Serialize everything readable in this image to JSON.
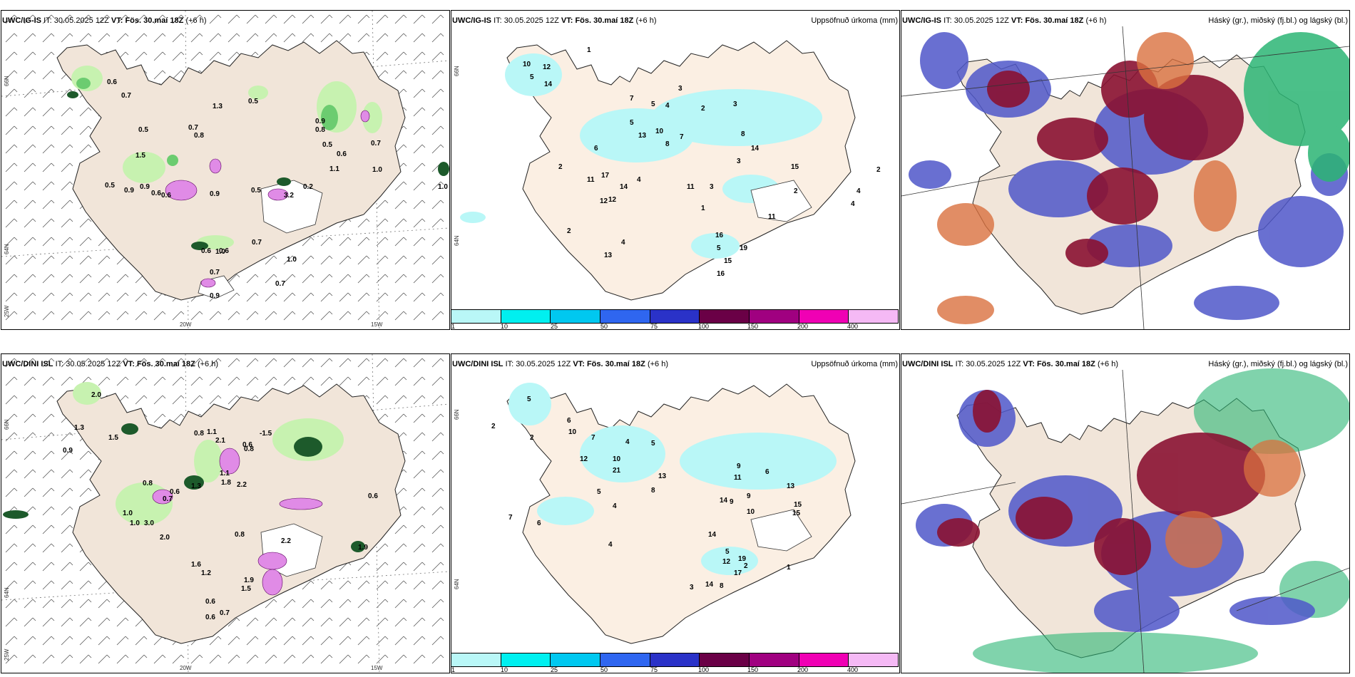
{
  "rows": [
    {
      "panels": [
        {
          "model": "UWC/IG-IS",
          "it_label": "IT:",
          "it": "30.05.2025 12Z",
          "vt_label": "VT:",
          "vt": "Fös. 30.maí 18Z",
          "offset": "(+6 h)",
          "right": ""
        },
        {
          "model": "UWC/IG-IS",
          "it_label": "IT:",
          "it": "30.05.2025 12Z",
          "vt_label": "VT:",
          "vt": "Fös. 30.maí 18Z",
          "offset": "(+6 h)",
          "right": "Uppsöfnuð úrkoma (mm)"
        },
        {
          "model": "UWC/IG-IS",
          "it_label": "IT:",
          "it": "30.05.2025 12Z",
          "vt_label": "VT:",
          "vt": "Fös. 30.maí 18Z",
          "offset": "(+6 h)",
          "right": "Háský (gr.), miðský (fj.bl.) og lágský (bl.)"
        }
      ]
    },
    {
      "panels": [
        {
          "model": "UWC/DINI ISL",
          "it_label": "IT:",
          "it": "30.05.2025 12Z",
          "vt_label": "VT:",
          "vt": "Fös. 30.maí 18Z",
          "offset": "(+6 h)",
          "right": ""
        },
        {
          "model": "UWC/DINI ISL",
          "it_label": "IT:",
          "it": "30.05.2025 12Z",
          "vt_label": "VT:",
          "vt": "Fös. 30.maí 18Z",
          "offset": "(+6 h)",
          "right": "Uppsöfnuð úrkoma (mm)"
        },
        {
          "model": "UWC/DINI ISL",
          "it_label": "IT:",
          "it": "30.05.2025 12Z",
          "vt_label": "VT:",
          "vt": "Fös. 30.maí 18Z",
          "offset": "(+6 h)",
          "right": "Háský (gr.), miðský (fj.bl.) og lágský (bl.)"
        }
      ]
    }
  ],
  "axes": {
    "lon_20w": "20W",
    "lon_15w": "15W",
    "lat_66n": "66N",
    "lat_64n": "64N",
    "lon_25w": "25W"
  },
  "legend": {
    "ticks": [
      "1",
      "10",
      "25",
      "50",
      "75",
      "100",
      "150",
      "200",
      "400"
    ],
    "colors": [
      "#b9f7f7",
      "#00f0f0",
      "#00c8f0",
      "#2f66f0",
      "#2a32c8",
      "#6a0046",
      "#a00080",
      "#f000b4",
      "#f5b9f5"
    ]
  },
  "colors": {
    "land": "#f1e5d9",
    "precip_light": "#b9f7f7",
    "green_light": "#c7f2b0",
    "green_mid": "#6ccc70",
    "green_dark": "#1d5a2b",
    "cloud_low": "#4f57c9",
    "cloud_mid": "#8a1232",
    "cloud_high": "#2bb574",
    "cloud_orange": "#d9703e"
  },
  "panel1_labels_top": [
    "0.6",
    "0.7",
    "0.5",
    "1.3",
    "0.7",
    "0.9",
    "0.8",
    "0.5",
    "0.7",
    "1.0",
    "0.6",
    "0.5",
    "0.8",
    "1.5",
    "0.9",
    "0.5",
    "0.6",
    "0.6",
    "1.0",
    "0.7",
    "0.9",
    "1.1",
    "0.5",
    "0.6",
    "0.6",
    "0.7",
    "0.7",
    "1.0",
    "0.9",
    "0.9",
    "3.2",
    "0.2",
    "1.0"
  ],
  "panel1_labels_bottom": [
    "2.0",
    "0.9",
    "1.3",
    "1.5",
    "0.8",
    "1.0",
    "0.6",
    "0.7",
    "1.1",
    "2.1",
    "0.8",
    "-1.5",
    "0.8",
    "1.3",
    "0.6",
    "1.1",
    "1.8",
    "2.2",
    "0.6",
    "1.0",
    "0.8",
    "2.0",
    "1.9",
    "1.5",
    "1.6",
    "1.2",
    "3.0",
    "1.9",
    "0.6",
    "0.7",
    "0.6",
    "2.2"
  ],
  "panel2_labels_top": [
    "1",
    "10",
    "12",
    "5",
    "14",
    "7",
    "5",
    "4",
    "3",
    "3",
    "8",
    "2",
    "5",
    "10",
    "13",
    "14",
    "8",
    "7",
    "6",
    "4",
    "2",
    "11",
    "17",
    "11",
    "12",
    "2",
    "14",
    "4",
    "3",
    "13",
    "16",
    "12",
    "1",
    "2",
    "3",
    "15",
    "11",
    "5",
    "15",
    "16",
    "19",
    "4",
    "2",
    "4"
  ],
  "panel2_labels_bottom": [
    "5",
    "10",
    "6",
    "2",
    "7",
    "4",
    "5",
    "12",
    "10",
    "13",
    "21",
    "8",
    "9",
    "11",
    "6",
    "10",
    "15",
    "14",
    "13",
    "14",
    "9",
    "5",
    "2",
    "12",
    "19",
    "17",
    "8",
    "14",
    "4",
    "3",
    "6",
    "1",
    "7",
    "5",
    "2",
    "9",
    "4",
    "15"
  ]
}
